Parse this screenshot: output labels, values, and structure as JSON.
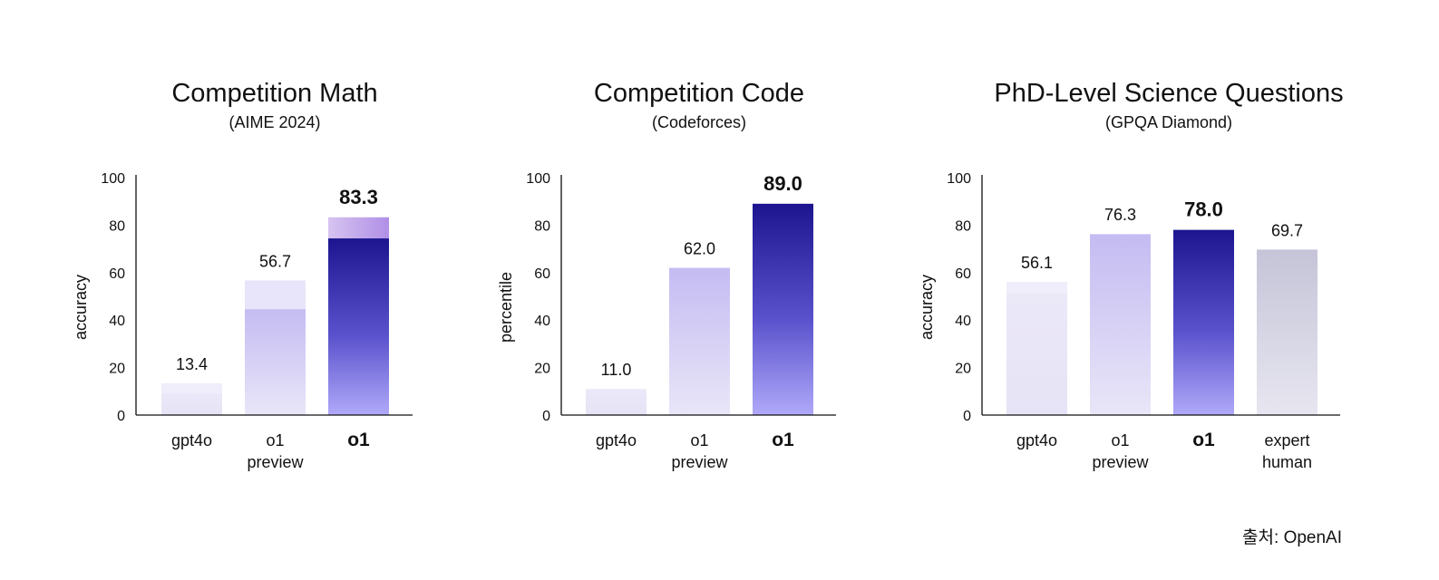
{
  "source": "출처: OpenAI",
  "chart_data": [
    {
      "type": "bar",
      "title": "Competition Math",
      "subtitle": "(AIME 2024)",
      "ylabel": "accuracy",
      "ylim": [
        0,
        100
      ],
      "yticks": [
        "0",
        "20",
        "40",
        "60",
        "80",
        "100"
      ],
      "categories": [
        {
          "lines": [
            "gpt4o"
          ],
          "bold": false
        },
        {
          "lines": [
            "o1",
            "preview"
          ],
          "bold": false
        },
        {
          "lines": [
            "o1"
          ],
          "bold": true
        }
      ],
      "values": [
        13.4,
        56.7,
        83.3
      ],
      "inner_values": [
        9.3,
        44.6,
        74.4
      ],
      "labels": [
        "13.4",
        "56.7",
        "83.3"
      ],
      "colors": [
        "light",
        "mid",
        "strong"
      ]
    },
    {
      "type": "bar",
      "title": "Competition Code",
      "subtitle": "(Codeforces)",
      "ylabel": "percentile",
      "ylim": [
        0,
        100
      ],
      "yticks": [
        "0",
        "20",
        "40",
        "60",
        "80",
        "100"
      ],
      "categories": [
        {
          "lines": [
            "gpt4o"
          ],
          "bold": false
        },
        {
          "lines": [
            "o1",
            "preview"
          ],
          "bold": false
        },
        {
          "lines": [
            "o1"
          ],
          "bold": true
        }
      ],
      "values": [
        11.0,
        62.0,
        89.0
      ],
      "labels": [
        "11.0",
        "62.0",
        "89.0"
      ],
      "colors": [
        "light",
        "mid",
        "strong"
      ]
    },
    {
      "type": "bar",
      "title": "PhD-Level Science Questions",
      "subtitle": "(GPQA Diamond)",
      "ylabel": "accuracy",
      "ylim": [
        0,
        100
      ],
      "yticks": [
        "0",
        "20",
        "40",
        "60",
        "80",
        "100"
      ],
      "categories": [
        {
          "lines": [
            "gpt4o"
          ],
          "bold": false
        },
        {
          "lines": [
            "o1",
            "preview"
          ],
          "bold": false
        },
        {
          "lines": [
            "o1"
          ],
          "bold": true
        },
        {
          "lines": [
            "expert",
            "human"
          ],
          "bold": false
        }
      ],
      "values": [
        56.1,
        76.3,
        78.0,
        69.7
      ],
      "inner_values": [
        51.4,
        76.1,
        null,
        null
      ],
      "labels": [
        "56.1",
        "76.3",
        "78.0",
        "69.7"
      ],
      "colors": [
        "light",
        "mid",
        "strong",
        "gray"
      ]
    }
  ]
}
